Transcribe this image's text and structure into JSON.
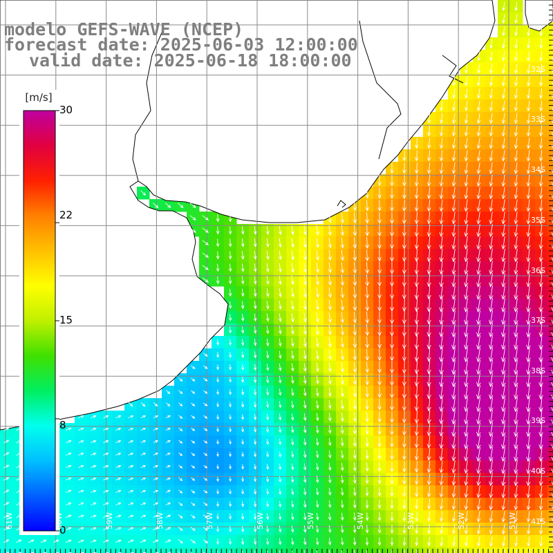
{
  "header": {
    "model": "modelo GEFS-WAVE (NCEP)",
    "forecast": "forecast date: 2025-06-03 12:00:00",
    "valid": "valid date: 2025-06-18 18:00:00"
  },
  "colorbar": {
    "unit": "[m/s]",
    "min": 0,
    "max": 30,
    "ticks": [
      "30",
      "22",
      "15",
      "8",
      "0"
    ],
    "tick_values": [
      30,
      22,
      15,
      8,
      0
    ],
    "stops": [
      "#0000ff",
      "#0060ff",
      "#00c0ff",
      "#00ffee",
      "#00ee60",
      "#40e000",
      "#c0f000",
      "#ffff00",
      "#ffc000",
      "#ff8000",
      "#ff2000",
      "#e00040",
      "#c000a0"
    ]
  },
  "map": {
    "lat_labels": [
      "32S",
      "33S",
      "34S",
      "35S",
      "36S",
      "37S",
      "38S",
      "39S",
      "40S",
      "41S"
    ],
    "lon_labels": [
      "61W",
      "60W",
      "59W",
      "58W",
      "57W",
      "56W",
      "55W",
      "54W",
      "53W",
      "52W",
      "51W"
    ],
    "grid_color": "#8a8a8a",
    "land_color": "#ffffff",
    "coast_color": "#000000",
    "arrow_color": "#ffffff",
    "field_description_units": "m/s wind speed",
    "field_levels": [
      6,
      7,
      8,
      9,
      10,
      11,
      12,
      13,
      14,
      15,
      16,
      17,
      18,
      19,
      20,
      21
    ]
  }
}
